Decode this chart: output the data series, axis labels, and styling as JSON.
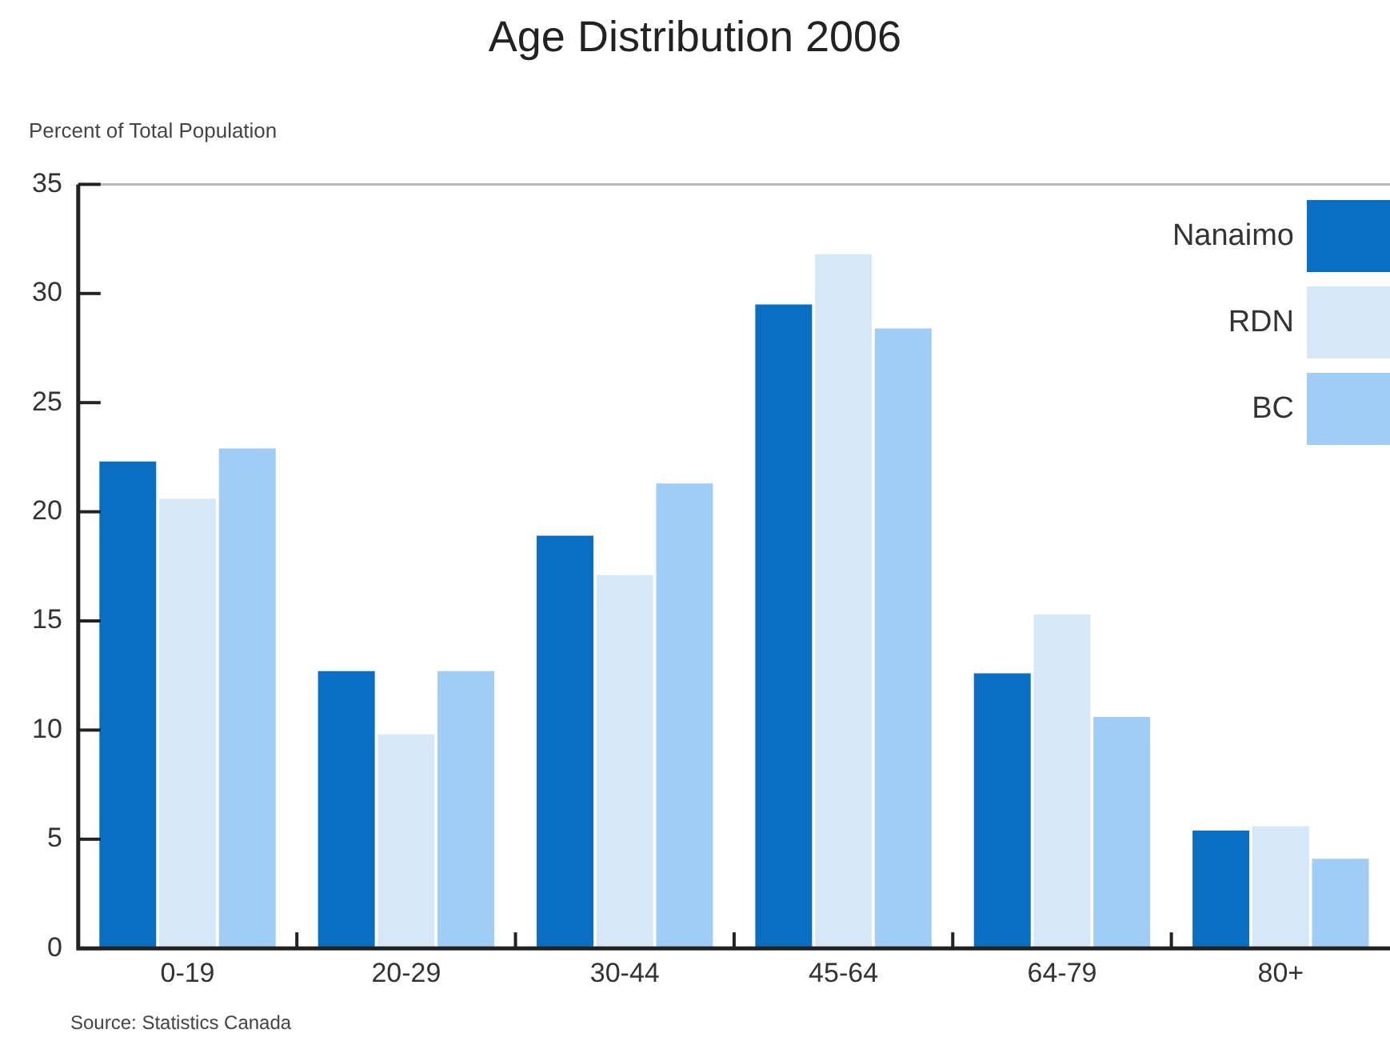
{
  "chart_data": {
    "type": "bar",
    "title": "Age Distribution 2006",
    "ylabel": "Percent of Total Population",
    "categories": [
      "0-19",
      "20-29",
      "30-44",
      "45-64",
      "64-79",
      "80+"
    ],
    "series": [
      {
        "name": "Nanaimo",
        "color": "#0a6fc2",
        "values": [
          22.3,
          12.7,
          18.9,
          29.5,
          12.6,
          5.4
        ]
      },
      {
        "name": "RDN",
        "color": "#d6e8f8",
        "values": [
          20.6,
          9.8,
          17.1,
          31.8,
          15.3,
          5.6
        ]
      },
      {
        "name": "BC",
        "color": "#9fcdf5",
        "values": [
          22.9,
          12.7,
          21.3,
          28.4,
          10.6,
          4.1
        ]
      }
    ],
    "ylim": [
      0,
      35
    ],
    "yticks": [
      0,
      5,
      10,
      15,
      20,
      25,
      30,
      35
    ],
    "grid": false,
    "legend": "top right",
    "annotations": [
      "Source: Statistics Canada"
    ]
  }
}
